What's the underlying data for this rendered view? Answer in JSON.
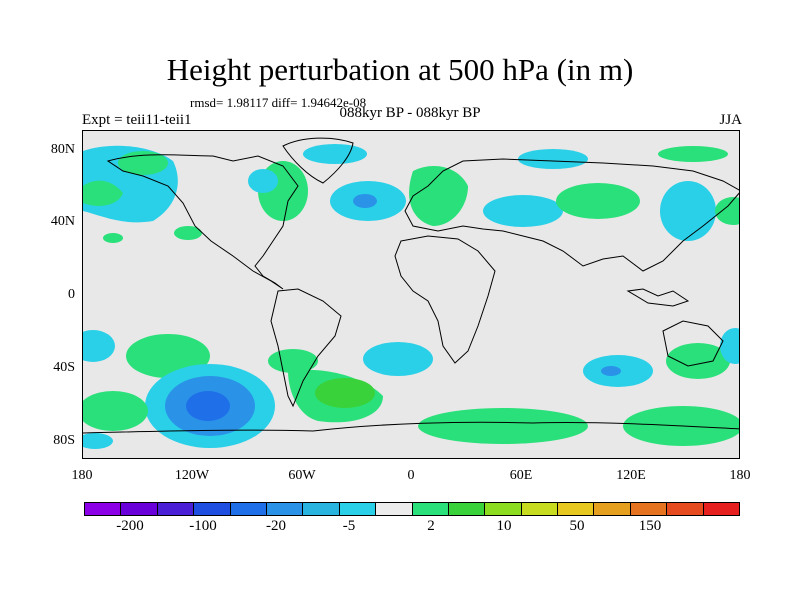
{
  "title": "Height perturbation at 500 hPa (in m)",
  "stats": "rmsd= 1.98117 diff= 1.94642e-08",
  "left_subtitle": "Expt = teii11-teii1",
  "center_subtitle": "088kyr BP - 088kyr BP",
  "right_subtitle": "JJA",
  "lat_ticks": [
    "80N",
    "40N",
    "0",
    "40S",
    "80S"
  ],
  "lon_ticks": [
    "180",
    "120W",
    "60W",
    "0",
    "60E",
    "120E",
    "180"
  ],
  "colorbar": {
    "colors": [
      "#8b00e6",
      "#6a00d9",
      "#4a1fd6",
      "#1f4fe0",
      "#1f6fe8",
      "#2a93e8",
      "#29b4e0",
      "#2ad0e8",
      "#ececec",
      "#2ae07a",
      "#3ad23a",
      "#8cdc1f",
      "#c8dc1f",
      "#e6c81f",
      "#e6a01f",
      "#e6731f",
      "#e64a1f",
      "#e61f1f"
    ],
    "labels": [
      "-200",
      "-100",
      "-20",
      "-5",
      "2",
      "10",
      "50",
      "150"
    ]
  },
  "field_colors": {
    "background": "#e8e8e8",
    "neg_light": "#2ad0e8",
    "neg_mid": "#29b4e0",
    "neg_strong": "#2a93e8",
    "neg_deep": "#1f6fe8",
    "pos_light": "#2ae07a",
    "pos_mid": "#3ad23a"
  }
}
